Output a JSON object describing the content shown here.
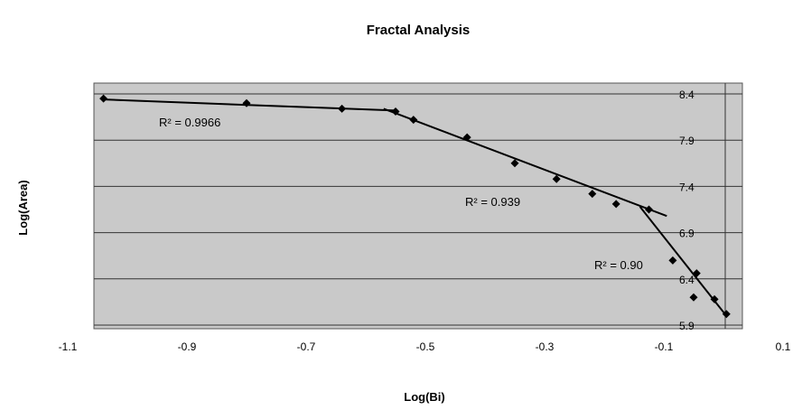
{
  "chart_data": {
    "type": "scatter",
    "title": "Fractal Analysis",
    "xlabel": "Log(Bi)",
    "ylabel": "Log(Area)",
    "xlim": [
      -1.1,
      0.1
    ],
    "ylim": [
      5.9,
      8.4
    ],
    "x_ticks": [
      "-1.1",
      "-0.9",
      "-0.7",
      "-0.5",
      "-0.3",
      "-0.1",
      "0.1"
    ],
    "y_tick_labels": [
      "5.9",
      "6.4",
      "6.9",
      "7.4",
      "7.9",
      "8.4"
    ],
    "grid": true,
    "background": "#c9c9c9",
    "series": [
      {
        "marker": "diamond",
        "color": "#000000",
        "x": [
          -1.04,
          -0.8,
          -0.64,
          -0.55,
          -0.52,
          -0.43,
          -0.35,
          -0.28,
          -0.22,
          -0.18,
          -0.125,
          -0.085,
          -0.05,
          -0.045,
          -0.015,
          0.005
        ],
        "y": [
          8.35,
          8.3,
          8.24,
          8.21,
          8.12,
          7.93,
          7.65,
          7.48,
          7.32,
          7.21,
          7.15,
          6.6,
          6.2,
          6.46,
          6.18,
          6.02
        ]
      }
    ],
    "trendlines": [
      {
        "x": [
          -1.04,
          -0.55
        ],
        "y": [
          8.34,
          8.22
        ],
        "r2_label": "R² = 0.9966"
      },
      {
        "x": [
          -0.57,
          -0.095
        ],
        "y": [
          8.24,
          7.08
        ],
        "r2_label": "R² = 0.939"
      },
      {
        "x": [
          -0.14,
          0.005
        ],
        "y": [
          7.18,
          6.0
        ],
        "r2_label": "R² = 0.90"
      }
    ]
  }
}
